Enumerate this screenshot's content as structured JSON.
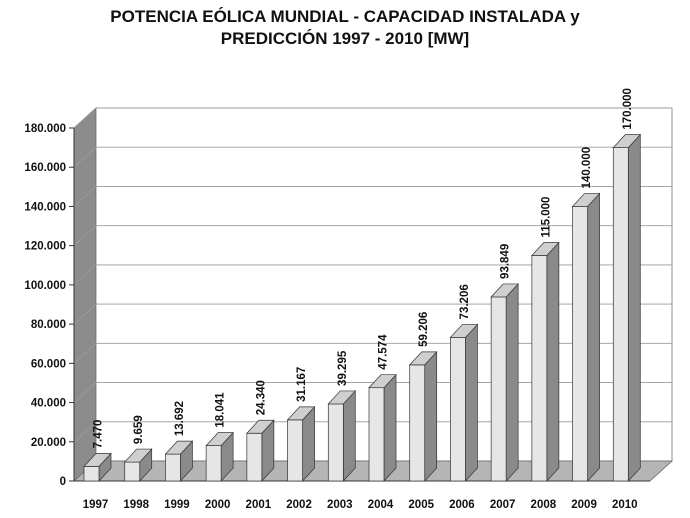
{
  "chart_data": {
    "type": "bar",
    "title": "POTENCIA EÓLICA MUNDIAL - CAPACIDAD INSTALADA y",
    "subtitle": "PREDICCIÓN 1997 - 2010 [MW]",
    "categories": [
      "1997",
      "1998",
      "1999",
      "2000",
      "2001",
      "2002",
      "2003",
      "2004",
      "2005",
      "2006",
      "2007",
      "2008",
      "2009",
      "2010"
    ],
    "values": [
      7470,
      9659,
      13692,
      18041,
      24340,
      31167,
      39295,
      47574,
      59206,
      73206,
      93849,
      115000,
      140000,
      170000
    ],
    "data_labels": [
      "7.470",
      "9.659",
      "13.692",
      "18.041",
      "24.340",
      "31.167",
      "39.295",
      "47.574",
      "59.206",
      "73.206",
      "93.849",
      "115.000",
      "140.000",
      "170.000"
    ],
    "yticks": [
      0,
      20000,
      40000,
      60000,
      80000,
      100000,
      120000,
      140000,
      160000,
      180000
    ],
    "ytick_labels": [
      "0",
      "20.000",
      "40.000",
      "60.000",
      "80.000",
      "100.000",
      "120.000",
      "140.000",
      "160.000",
      "180.000"
    ],
    "ylim": [
      0,
      180000
    ],
    "xlabel": "",
    "ylabel": "",
    "grid": true,
    "style": "3d-bar",
    "colors": {
      "bar_front": "#e6e6e6",
      "bar_side": "#8a8a8a",
      "bar_top": "#cfcfcf",
      "back_wall": "#ffffff",
      "side_wall": "#8c8c8c",
      "floor": "#b5b5b5",
      "grid": "#9a9a9a"
    }
  }
}
